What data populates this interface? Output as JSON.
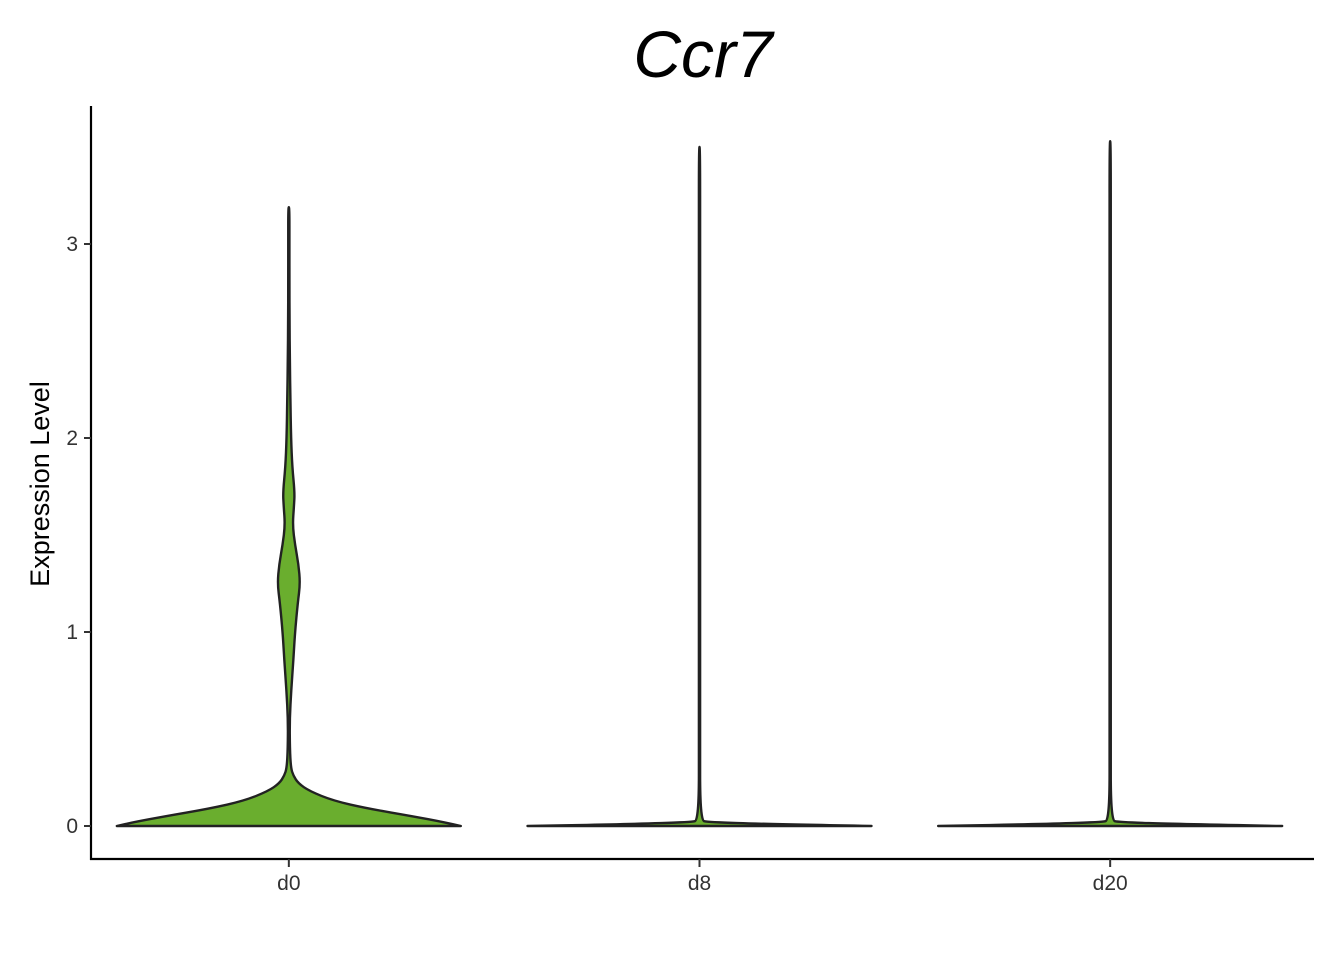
{
  "chart_data": {
    "type": "violin",
    "title": "Ccr7",
    "xlabel": "",
    "ylabel": "Expression Level",
    "categories": [
      "d0",
      "d8",
      "d20"
    ],
    "yticks": [
      0,
      1,
      2,
      3
    ],
    "ylim": [
      -0.17,
      3.7
    ],
    "grid": false,
    "legend": "none",
    "colors": {
      "d0": "#6AAE2E",
      "d8": "#6AAE2E",
      "d20": "#6AAE2E",
      "outline": "#222222"
    },
    "series": [
      {
        "category": "d0",
        "max": 3.19,
        "profile": [
          [
            0.0,
            1.0
          ],
          [
            0.02,
            0.9
          ],
          [
            0.05,
            0.72
          ],
          [
            0.09,
            0.46
          ],
          [
            0.13,
            0.26
          ],
          [
            0.18,
            0.12
          ],
          [
            0.22,
            0.055
          ],
          [
            0.26,
            0.026
          ],
          [
            0.3,
            0.012
          ],
          [
            0.4,
            0.006
          ],
          [
            0.55,
            0.005
          ],
          [
            0.7,
            0.014
          ],
          [
            0.85,
            0.026
          ],
          [
            1.0,
            0.036
          ],
          [
            1.15,
            0.052
          ],
          [
            1.25,
            0.066
          ],
          [
            1.35,
            0.056
          ],
          [
            1.45,
            0.036
          ],
          [
            1.55,
            0.022
          ],
          [
            1.65,
            0.03
          ],
          [
            1.72,
            0.034
          ],
          [
            1.85,
            0.02
          ],
          [
            2.0,
            0.013
          ],
          [
            2.2,
            0.009
          ],
          [
            2.4,
            0.006
          ],
          [
            2.6,
            0.004
          ],
          [
            2.8,
            0.003
          ],
          [
            3.0,
            0.002
          ],
          [
            3.19,
            0.0
          ]
        ]
      },
      {
        "category": "d8",
        "max": 3.5,
        "profile": [
          [
            0.0,
            1.0
          ],
          [
            0.01,
            0.4
          ],
          [
            0.02,
            0.05
          ],
          [
            0.03,
            0.003
          ],
          [
            0.5,
            0.003
          ],
          [
            1.0,
            0.003
          ],
          [
            1.5,
            0.003
          ],
          [
            2.0,
            0.003
          ],
          [
            2.5,
            0.003
          ],
          [
            3.0,
            0.003
          ],
          [
            3.5,
            0.0
          ]
        ]
      },
      {
        "category": "d20",
        "max": 3.53,
        "profile": [
          [
            0.0,
            1.0
          ],
          [
            0.01,
            0.4
          ],
          [
            0.02,
            0.05
          ],
          [
            0.03,
            0.003
          ],
          [
            0.5,
            0.003
          ],
          [
            1.0,
            0.003
          ],
          [
            1.5,
            0.003
          ],
          [
            2.0,
            0.003
          ],
          [
            2.5,
            0.003
          ],
          [
            3.0,
            0.003
          ],
          [
            3.53,
            0.0
          ]
        ]
      }
    ]
  }
}
